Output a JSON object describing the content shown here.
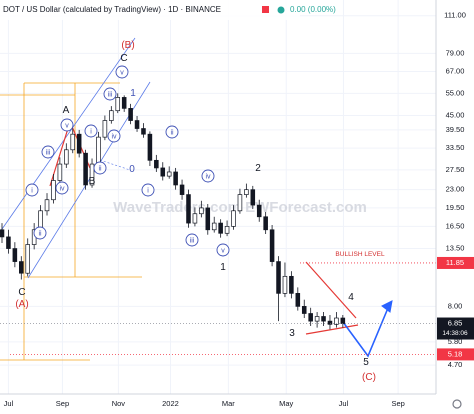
{
  "chart_data": {
    "type": "candlestick",
    "title": "DOT / US Dollar (calculated by TradingView) · 1D · BINANCE",
    "change": "0.00 (0.00%)",
    "watermark": "WaveTraders.com  EWForecast.com",
    "log_scale": true,
    "up_color": "#ffffff",
    "down_color": "#131722",
    "ylim": [
      3.62,
      128
    ],
    "yticks": [
      {
        "value": 111,
        "label": "111.00"
      },
      {
        "value": 79,
        "label": "79.00"
      },
      {
        "value": 67,
        "label": "67.00"
      },
      {
        "value": 55,
        "label": "55.00"
      },
      {
        "value": 45,
        "label": "45.00"
      },
      {
        "value": 39.5,
        "label": "39.50"
      },
      {
        "value": 33.5,
        "label": "33.50"
      },
      {
        "value": 27.5,
        "label": "27.50"
      },
      {
        "value": 23,
        "label": "23.00"
      },
      {
        "value": 19.5,
        "label": "19.50"
      },
      {
        "value": 16.5,
        "label": "16.50"
      },
      {
        "value": 13.5,
        "label": "13.50"
      },
      {
        "value": 8,
        "label": "8.00"
      },
      {
        "value": 5.8,
        "label": "5.80"
      },
      {
        "value": 4.7,
        "label": "4.70"
      }
    ],
    "xlim": [
      0,
      67.8
    ],
    "xticks": [
      {
        "value": 1,
        "label": "Jul"
      },
      {
        "value": 9.4,
        "label": "Sep"
      },
      {
        "value": 18.1,
        "label": "Nov"
      },
      {
        "value": 26.2,
        "label": "2022"
      },
      {
        "value": 35.2,
        "label": "Mar"
      },
      {
        "value": 44.2,
        "label": "May"
      },
      {
        "value": 53.1,
        "label": "Jul"
      },
      {
        "value": 61.6,
        "label": "Sep"
      }
    ],
    "candles": [
      [
        16,
        17,
        14.2,
        15
      ],
      [
        15,
        16,
        12.9,
        13.5
      ],
      [
        13.5,
        14.3,
        11.4,
        12
      ],
      [
        12,
        12.6,
        10.2,
        10.8
      ],
      [
        10.8,
        14.8,
        10.5,
        14
      ],
      [
        14,
        17,
        13.4,
        16
      ],
      [
        16,
        20,
        15.5,
        19
      ],
      [
        19,
        22.3,
        18.2,
        21
      ],
      [
        21,
        26.5,
        20.3,
        25
      ],
      [
        25,
        30.8,
        24.2,
        29
      ],
      [
        29,
        35,
        28,
        33
      ],
      [
        33,
        40,
        32,
        38
      ],
      [
        38,
        39.5,
        30.8,
        32
      ],
      [
        32,
        33,
        23,
        24
      ],
      [
        24,
        30.5,
        23.4,
        29
      ],
      [
        29,
        38.8,
        28.2,
        37
      ],
      [
        37,
        45,
        36,
        43
      ],
      [
        43,
        49,
        41.8,
        47
      ],
      [
        47,
        55,
        46,
        53
      ],
      [
        53,
        54,
        46.5,
        48
      ],
      [
        48,
        50,
        41.6,
        43
      ],
      [
        43,
        44.8,
        38.8,
        40
      ],
      [
        40,
        42,
        36.8,
        38
      ],
      [
        38,
        39,
        28.5,
        30
      ],
      [
        30,
        31.5,
        27,
        28
      ],
      [
        28,
        29.5,
        25,
        26
      ],
      [
        26,
        28.4,
        25.4,
        27
      ],
      [
        27,
        28,
        23,
        24
      ],
      [
        24,
        25.2,
        21,
        22
      ],
      [
        22,
        23,
        16.3,
        17
      ],
      [
        17,
        19.6,
        16.5,
        18.5
      ],
      [
        18.5,
        20.8,
        17.9,
        19.5
      ],
      [
        19.5,
        20.2,
        15.3,
        16
      ],
      [
        16,
        18,
        15.6,
        17
      ],
      [
        17,
        17.6,
        14.9,
        15.5
      ],
      [
        15.5,
        17.4,
        15.1,
        16.5
      ],
      [
        16.5,
        20,
        16,
        19
      ],
      [
        19,
        23.2,
        18.5,
        22
      ],
      [
        22,
        24.3,
        21.4,
        23
      ],
      [
        23,
        23.8,
        19.3,
        20
      ],
      [
        20,
        21,
        17.2,
        18
      ],
      [
        18,
        18.8,
        15.4,
        16
      ],
      [
        16,
        16.7,
        11.5,
        12
      ],
      [
        12,
        12.6,
        7,
        9
      ],
      [
        9,
        11.9,
        8.7,
        10.5
      ],
      [
        10.5,
        11,
        8.6,
        9
      ],
      [
        9,
        9.5,
        7.7,
        8
      ],
      [
        8,
        8.5,
        7.2,
        7.5
      ],
      [
        7.5,
        7.9,
        6.7,
        7
      ],
      [
        7,
        7.6,
        6.6,
        7.3
      ],
      [
        7.3,
        7.6,
        6.7,
        7
      ],
      [
        7,
        7.4,
        6.5,
        6.8
      ],
      [
        6.8,
        7.6,
        6.6,
        7.2
      ],
      [
        7.2,
        7.4,
        6.6,
        6.85
      ]
    ],
    "levels": [
      {
        "value": 11.85,
        "color": "#f23645"
      },
      {
        "value": 5.18,
        "color": "#f23645"
      }
    ],
    "last_price": {
      "value": 6.85,
      "label": "6.85",
      "countdown": "14:38:06",
      "color": "#131722"
    },
    "annotations": [
      {
        "text": "(B)",
        "color": "#d32f2f"
      },
      {
        "text": "C",
        "color": "#131722"
      },
      {
        "text": "v",
        "color": "#3f51b5",
        "circled": true
      },
      {
        "text": "iii",
        "color": "#3f51b5",
        "circled": true
      },
      {
        "text": "A",
        "color": "#131722"
      },
      {
        "text": "v",
        "color": "#3f51b5",
        "circled": true
      },
      {
        "text": "i",
        "color": "#3f51b5",
        "circled": true
      },
      {
        "text": "iv",
        "color": "#3f51b5",
        "circled": true
      },
      {
        "text": "iii",
        "color": "#3f51b5",
        "circled": true
      },
      {
        "text": "ii",
        "color": "#3f51b5",
        "circled": true
      },
      {
        "text": "0",
        "color": "#3f51b5"
      },
      {
        "text": "B",
        "color": "#131722"
      },
      {
        "text": "iv",
        "color": "#3f51b5",
        "circled": true
      },
      {
        "text": "i",
        "color": "#3f51b5",
        "circled": true
      },
      {
        "text": "ii",
        "color": "#3f51b5",
        "circled": true
      },
      {
        "text": "C",
        "color": "#131722"
      },
      {
        "text": "(A)",
        "color": "#d32f2f"
      },
      {
        "text": "ii",
        "color": "#3f51b5",
        "circled": true
      },
      {
        "text": "i",
        "color": "#3f51b5",
        "circled": true
      },
      {
        "text": "iv",
        "color": "#3f51b5",
        "circled": true
      },
      {
        "text": "iii",
        "color": "#3f51b5",
        "circled": true
      },
      {
        "text": "v",
        "color": "#3f51b5",
        "circled": true
      },
      {
        "text": "1",
        "color": "#131722"
      },
      {
        "text": "2",
        "color": "#131722"
      },
      {
        "text": "3",
        "color": "#131722"
      },
      {
        "text": "4",
        "color": "#131722"
      },
      {
        "text": "5",
        "color": "#131722"
      },
      {
        "text": "(C)",
        "color": "#d32f2f"
      },
      {
        "text": "BULLISH LEVEL",
        "color": "#d32f2f"
      },
      {
        "text": "1",
        "color": "#3f51b5"
      }
    ]
  }
}
